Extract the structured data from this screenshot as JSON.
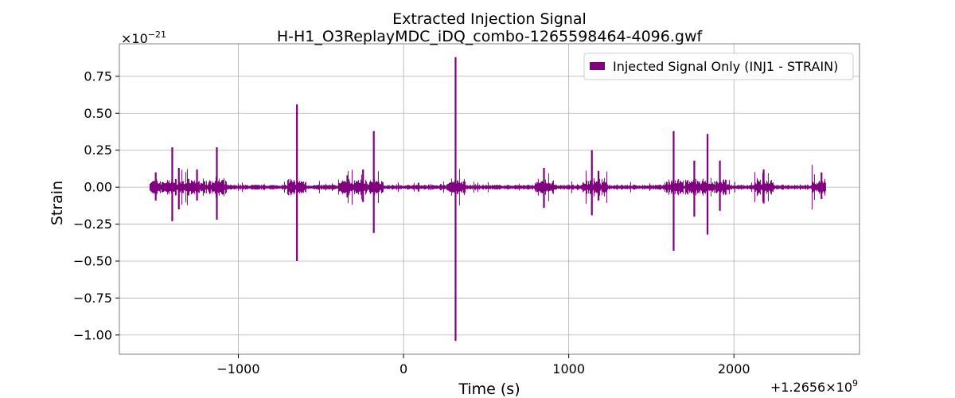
{
  "chart_data": {
    "type": "line",
    "title": "Extracted Injection Signal",
    "subtitle": "H-H1_O3ReplayMDC_iDQ_combo-1265598464-4096.gwf",
    "xlabel": "Time (s)",
    "ylabel": "Strain",
    "x_offset_label": "+1.2656×10",
    "x_offset_exponent": "9",
    "y_scale_label": "×10",
    "y_scale_exponent": "−21",
    "xlim": [
      -1720,
      2760
    ],
    "ylim": [
      -1.13,
      0.97
    ],
    "x_ticks": [
      {
        "value": -1000,
        "label": "−1000"
      },
      {
        "value": 0,
        "label": "0"
      },
      {
        "value": 1000,
        "label": "1000"
      },
      {
        "value": 2000,
        "label": "2000"
      }
    ],
    "y_ticks": [
      {
        "value": 0.75,
        "label": "0.75"
      },
      {
        "value": 0.5,
        "label": "0.50"
      },
      {
        "value": 0.25,
        "label": "0.25"
      },
      {
        "value": 0.0,
        "label": "0.00"
      },
      {
        "value": -0.25,
        "label": "−0.25"
      },
      {
        "value": -0.5,
        "label": "−0.50"
      },
      {
        "value": -0.75,
        "label": "−0.75"
      },
      {
        "value": -1.0,
        "label": "−1.00"
      }
    ],
    "grid": true,
    "legend_position": "top-right",
    "series": [
      {
        "name": "Injected Signal Only (INJ1 - STRAIN)",
        "color": "#800080",
        "x_range": [
          -1535,
          2555
        ],
        "baseline_amplitude": 0.012,
        "spikes": [
          {
            "t": -1500,
            "max": 0.1,
            "min": -0.09
          },
          {
            "t": -1400,
            "max": 0.27,
            "min": -0.23
          },
          {
            "t": -1360,
            "max": 0.13,
            "min": -0.15
          },
          {
            "t": -1250,
            "max": 0.12,
            "min": -0.09
          },
          {
            "t": -1130,
            "max": 0.27,
            "min": -0.22
          },
          {
            "t": -645,
            "max": 0.56,
            "min": -0.5
          },
          {
            "t": -340,
            "max": 0.08,
            "min": -0.07
          },
          {
            "t": -245,
            "max": 0.12,
            "min": -0.1
          },
          {
            "t": -180,
            "max": 0.38,
            "min": -0.31
          },
          {
            "t": 315,
            "max": 0.88,
            "min": -1.04
          },
          {
            "t": 850,
            "max": 0.13,
            "min": -0.14
          },
          {
            "t": 1140,
            "max": 0.25,
            "min": -0.19
          },
          {
            "t": 1180,
            "max": 0.11,
            "min": -0.09
          },
          {
            "t": 1635,
            "max": 0.38,
            "min": -0.43
          },
          {
            "t": 1760,
            "max": 0.18,
            "min": -0.2
          },
          {
            "t": 1840,
            "max": 0.36,
            "min": -0.32
          },
          {
            "t": 1915,
            "max": 0.18,
            "min": -0.16
          },
          {
            "t": 2180,
            "max": 0.12,
            "min": -0.11
          },
          {
            "t": 2530,
            "max": 0.1,
            "min": -0.08
          }
        ]
      }
    ]
  }
}
